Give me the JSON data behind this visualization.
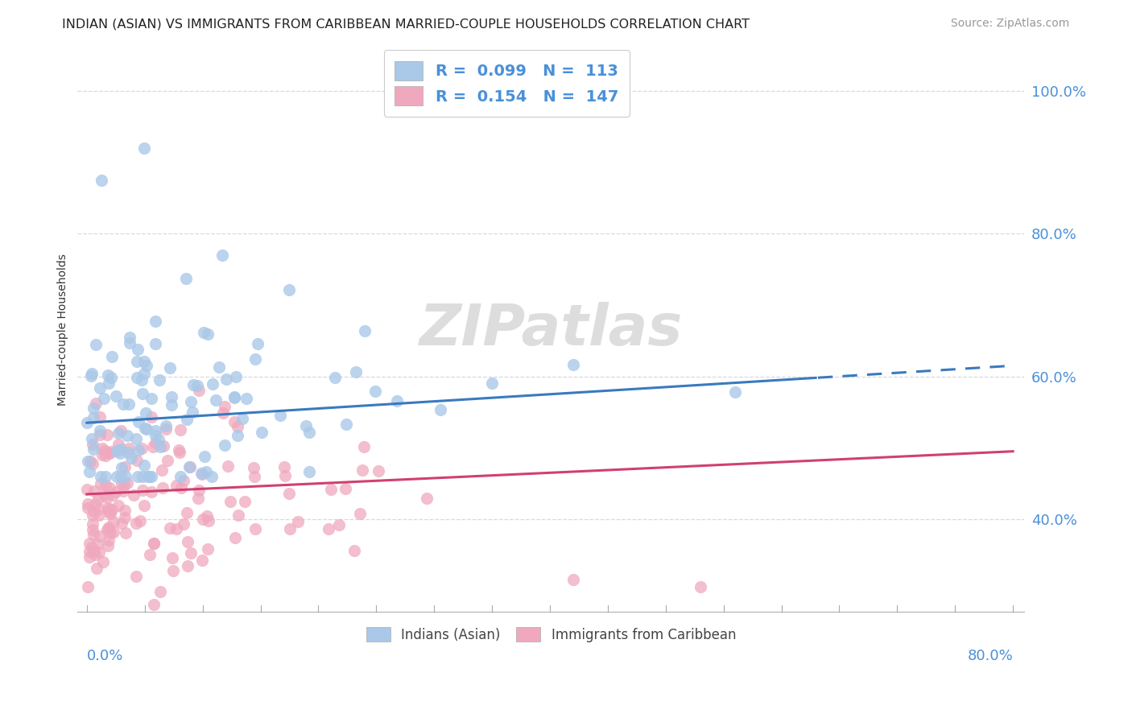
{
  "title": "INDIAN (ASIAN) VS IMMIGRANTS FROM CARIBBEAN MARRIED-COUPLE HOUSEHOLDS CORRELATION CHART",
  "source": "Source: ZipAtlas.com",
  "ylabel": "Married-couple Households",
  "yticks_labels": [
    "100.0%",
    "80.0%",
    "60.0%",
    "40.0%"
  ],
  "ytick_vals": [
    1.0,
    0.8,
    0.6,
    0.4
  ],
  "xlim": [
    0.0,
    0.8
  ],
  "ylim": [
    0.27,
    1.06
  ],
  "series1": {
    "label": "Indians (Asian)",
    "R": 0.099,
    "N": 113,
    "marker_color": "#aac8e8",
    "line_color": "#3a7abf",
    "line_solid_end": 0.63,
    "trend_x0": 0.0,
    "trend_y0": 0.535,
    "trend_x1": 0.8,
    "trend_y1": 0.615
  },
  "series2": {
    "label": "Immigrants from Caribbean",
    "R": 0.154,
    "N": 147,
    "marker_color": "#f0a8be",
    "line_color": "#d04070",
    "trend_x0": 0.0,
    "trend_y0": 0.435,
    "trend_x1": 0.8,
    "trend_y1": 0.495
  },
  "background_color": "#ffffff",
  "grid_color": "#d8d8d8",
  "grid_style": "--",
  "title_fontsize": 11.5,
  "source_fontsize": 10,
  "axis_label_fontsize": 10,
  "tick_label_color": "#4a90d9",
  "legend_R_color": "#4a90d9",
  "watermark": "ZIPatlas"
}
